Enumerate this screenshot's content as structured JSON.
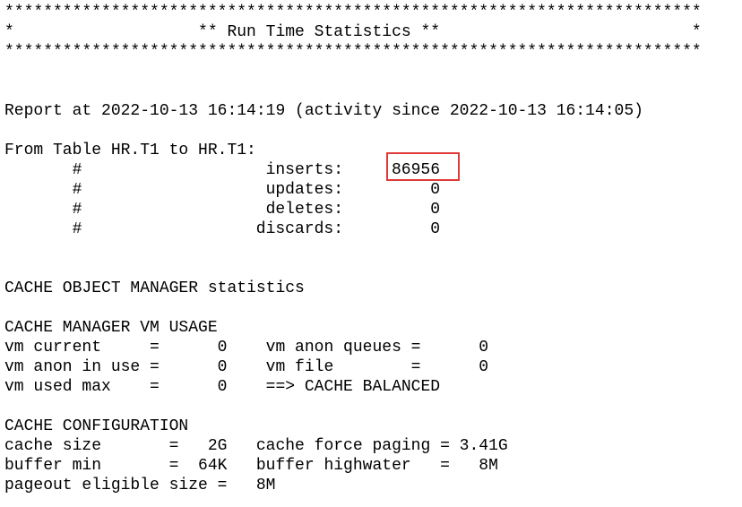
{
  "header": {
    "border": "************************************************************************",
    "title_line": "*                   ** Run Time Statistics **                          *"
  },
  "report": "Report at 2022-10-13 16:14:19 (activity since 2022-10-13 16:14:05)",
  "table": {
    "title": "From Table HR.T1 to HR.T1:",
    "marker": "#",
    "rows": [
      {
        "label": "inserts:",
        "value": 86956
      },
      {
        "label": "updates:",
        "value": 0
      },
      {
        "label": "deletes:",
        "value": 0
      },
      {
        "label": "discards:",
        "value": 0
      }
    ]
  },
  "lines": [
    "CACHE OBJECT MANAGER statistics",
    "CACHE MANAGER VM USAGE",
    "vm current     =      0    vm anon queues =      0",
    "vm anon in use =      0    vm file        =      0",
    "vm used max    =      0    ==> CACHE BALANCED",
    "CACHE CONFIGURATION",
    "cache size       =   2G   cache force paging = 3.41G",
    "buffer min       =  64K   buffer highwater   =   8M",
    "pageout eligible size =   8M"
  ]
}
